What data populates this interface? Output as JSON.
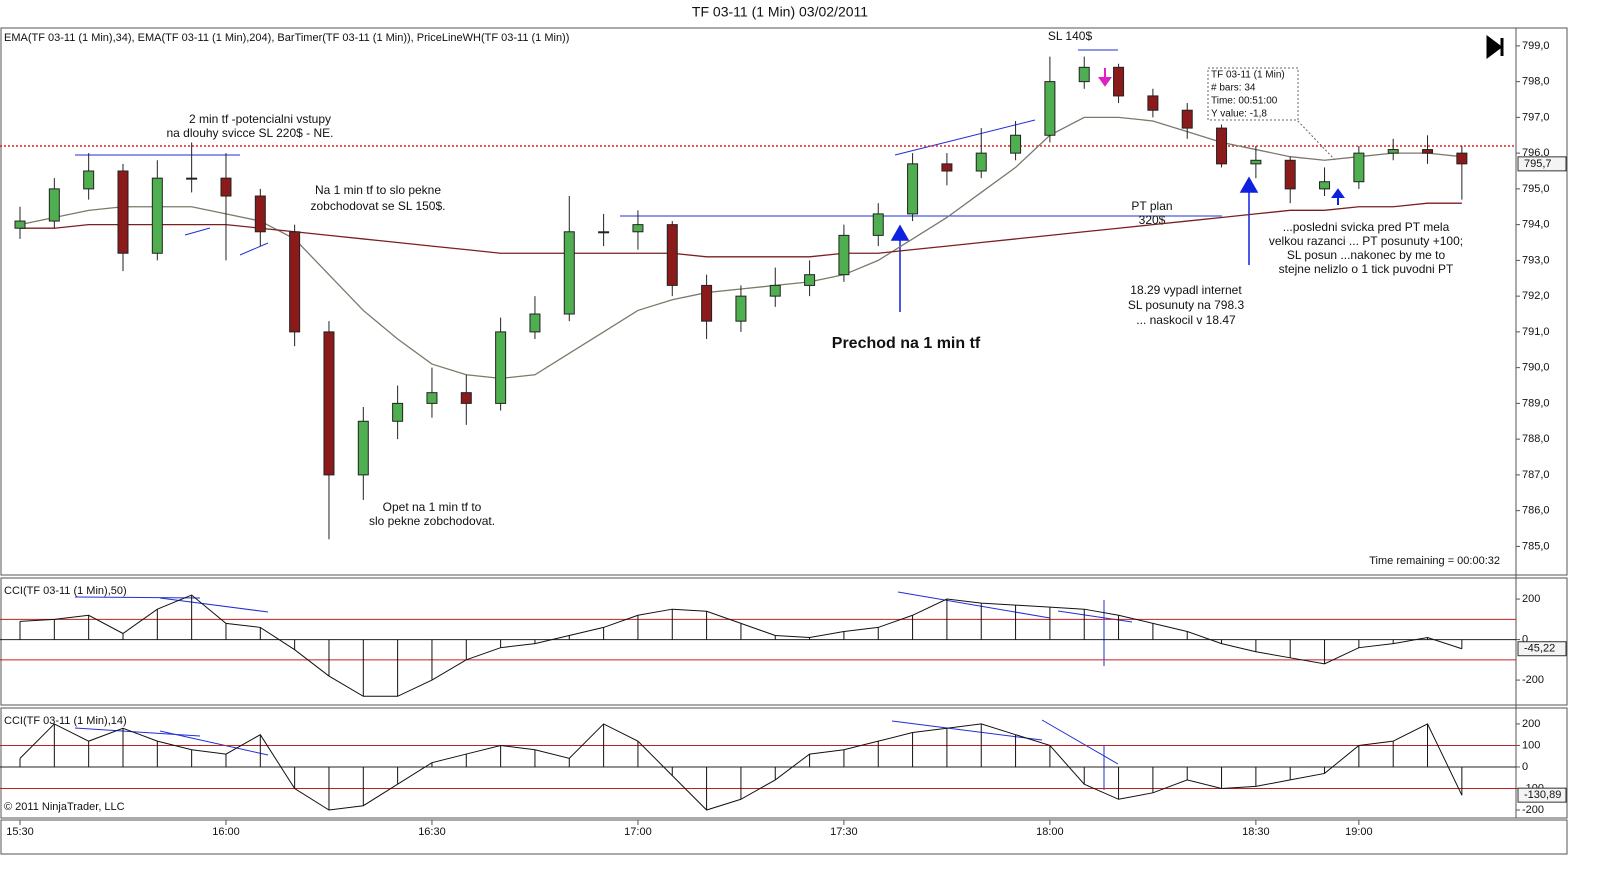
{
  "title": "TF 03-11 (1 Min)  03/02/2011",
  "indicators_label": "EMA(TF 03-11 (1 Min),34), EMA(TF 03-11 (1 Min),204), BarTimer(TF 03-11 (1 Min)), PriceLineWH(TF 03-11 (1 Min))",
  "annotations": [
    [
      "2 min tf -potencialni vstupy",
      "na dlouhy svicce SL 220$ - NE."
    ],
    [
      "Na 1 min tf to slo pekne",
      "zobchodovat se SL 150$."
    ],
    [
      "Opet na 1 min tf to",
      "slo pekne zobchodovat."
    ],
    [
      "Prechod na 1 min tf"
    ],
    [
      "SL 140$"
    ],
    [
      "PT plan",
      "320$"
    ],
    [
      "18.29 vypadl internet",
      "SL posunuty na 798.3",
      "... naskocil v 18.47"
    ],
    [
      "...posledni svicka pred PT mela",
      "velkou razanci ... PT posunuty +100;",
      "SL posun ...nakonec by me to",
      "stejne nelizlo o 1 tick puvodni PT"
    ]
  ],
  "tooltip": [
    "TF 03-11 (1 Min)",
    "# bars:   34",
    "Time:     00:51:00",
    "Y value: -1,8"
  ],
  "time_remaining": "Time remaining = 00:00:32",
  "copyright": "© 2011 NinjaTrader, LLC",
  "chart_data": [
    {
      "type": "candlestick",
      "categories": [
        "15:30",
        null,
        null,
        null,
        null,
        null,
        "16:00",
        null,
        null,
        null,
        null,
        null,
        "16:30",
        null,
        null,
        null,
        null,
        null,
        "17:00",
        null,
        null,
        null,
        null,
        null,
        "17:30",
        null,
        null,
        null,
        null,
        null,
        "18:00",
        null,
        null,
        null,
        null,
        null,
        "18:30",
        null,
        null,
        "19:00",
        null,
        null,
        null
      ],
      "open": [
        793.9,
        794.1,
        795.0,
        795.5,
        793.2,
        795.3,
        795.3,
        794.8,
        793.8,
        791.0,
        787.0,
        788.5,
        789.0,
        789.3,
        789.0,
        791.0,
        791.5,
        793.8,
        793.8,
        794.0,
        792.3,
        791.3,
        792.0,
        792.3,
        792.6,
        793.7,
        794.3,
        795.7,
        795.5,
        796.0,
        796.5,
        798.0,
        798.4,
        797.6,
        797.2,
        796.7,
        795.7,
        795.8,
        795.0,
        795.2,
        796.0,
        796.1,
        796.0
      ],
      "high": [
        794.5,
        795.3,
        796.0,
        795.7,
        795.8,
        796.3,
        796.0,
        795.0,
        794.0,
        791.3,
        788.9,
        789.5,
        790.0,
        789.8,
        791.4,
        792.0,
        794.8,
        794.3,
        794.4,
        794.1,
        792.6,
        792.3,
        792.8,
        793.0,
        794.0,
        794.6,
        796.0,
        796.0,
        796.7,
        796.9,
        798.7,
        798.7,
        798.5,
        797.8,
        797.4,
        796.8,
        796.2,
        795.9,
        795.6,
        796.2,
        796.4,
        796.5,
        796.2
      ],
      "low": [
        793.6,
        793.9,
        794.7,
        792.7,
        793.0,
        794.9,
        793.0,
        793.4,
        790.6,
        785.2,
        786.3,
        788.0,
        788.6,
        788.4,
        788.8,
        790.8,
        791.3,
        793.4,
        793.3,
        792.0,
        790.8,
        791.0,
        791.7,
        792.0,
        792.4,
        793.4,
        794.1,
        795.1,
        795.3,
        795.8,
        796.3,
        797.8,
        797.4,
        797.0,
        796.4,
        795.6,
        795.3,
        794.6,
        794.8,
        795.0,
        795.8,
        795.7,
        794.7
      ],
      "close": [
        794.1,
        795.0,
        795.5,
        793.2,
        795.3,
        795.3,
        794.8,
        793.8,
        791.0,
        787.0,
        788.5,
        789.0,
        789.3,
        789.0,
        791.0,
        791.5,
        793.8,
        793.8,
        794.0,
        792.3,
        791.3,
        792.0,
        792.3,
        792.6,
        793.7,
        794.3,
        795.7,
        795.5,
        796.0,
        796.5,
        798.0,
        798.4,
        797.6,
        797.2,
        796.7,
        795.7,
        795.8,
        795.0,
        795.2,
        796.0,
        796.1,
        796.0,
        795.7
      ],
      "up_color": "#4fae4f",
      "down_color": "#8b1a1a",
      "overlays": [
        {
          "color": "#7a7a6a",
          "values": [
            794.0,
            794.2,
            794.4,
            794.5,
            794.5,
            794.5,
            794.3,
            794.1,
            793.6,
            792.6,
            791.6,
            790.8,
            790.1,
            789.8,
            789.7,
            789.8,
            790.4,
            791.0,
            791.6,
            791.9,
            792.1,
            792.2,
            792.3,
            792.4,
            792.6,
            793.0,
            793.6,
            794.2,
            794.9,
            795.6,
            796.5,
            797.0,
            797.0,
            796.9,
            796.6,
            796.3,
            796.1,
            795.9,
            795.8,
            795.9,
            796.0,
            796.0,
            795.9
          ]
        },
        {
          "color": "#7a2020",
          "values": [
            793.9,
            793.9,
            794.0,
            794.0,
            794.0,
            794.0,
            794.0,
            793.9,
            793.8,
            793.7,
            793.6,
            793.5,
            793.4,
            793.3,
            793.2,
            793.2,
            793.2,
            793.2,
            793.2,
            793.2,
            793.1,
            793.1,
            793.1,
            793.1,
            793.2,
            793.2,
            793.3,
            793.4,
            793.5,
            793.6,
            793.7,
            793.8,
            793.9,
            794.0,
            794.1,
            794.2,
            794.3,
            794.4,
            794.4,
            794.5,
            794.5,
            794.6,
            794.6
          ]
        }
      ],
      "price_line": 796.2,
      "price_line_color": "#e02020",
      "marker": {
        "value": 795.7,
        "label": "795,7"
      },
      "ylim": [
        784.2,
        799.5
      ],
      "yticks": [
        {
          "value": 785,
          "label": "785,0"
        },
        {
          "value": 786,
          "label": "786,0"
        },
        {
          "value": 787,
          "label": "787,0"
        },
        {
          "value": 788,
          "label": "788,0"
        },
        {
          "value": 789,
          "label": "789,0"
        },
        {
          "value": 790,
          "label": "790,0"
        },
        {
          "value": 791,
          "label": "791,0"
        },
        {
          "value": 792,
          "label": "792,0"
        },
        {
          "value": 793,
          "label": "793,0"
        },
        {
          "value": 794,
          "label": "794,0"
        },
        {
          "value": 795,
          "label": "795,0"
        },
        {
          "value": 796,
          "label": "796,0"
        },
        {
          "value": 797,
          "label": "797,0"
        },
        {
          "value": 798,
          "label": "798,0"
        },
        {
          "value": 799,
          "label": "799,0"
        }
      ]
    },
    {
      "type": "bar",
      "title": "CCI(TF 03-11 (1 Min),50)",
      "color": "#111111",
      "values": [
        90,
        100,
        120,
        30,
        150,
        220,
        80,
        60,
        -50,
        -180,
        -280,
        -280,
        -200,
        -100,
        -40,
        -20,
        20,
        60,
        120,
        150,
        140,
        80,
        20,
        10,
        40,
        60,
        120,
        200,
        180,
        170,
        160,
        150,
        120,
        80,
        40,
        -20,
        -60,
        -90,
        -120,
        -40,
        -20,
        10,
        -45.22
      ],
      "marker": {
        "value": -45.22,
        "label": "-45,22"
      },
      "ref_lines": [
        100,
        -100
      ],
      "ref_color": "#c02020",
      "ylim": [
        -323,
        304
      ],
      "yticks": [
        200,
        0,
        -200
      ]
    },
    {
      "type": "bar",
      "title": "CCI(TF 03-11 (1 Min),14)",
      "color": "#111111",
      "values": [
        40,
        200,
        120,
        180,
        120,
        80,
        60,
        150,
        -100,
        -200,
        -180,
        -80,
        20,
        60,
        100,
        80,
        40,
        200,
        120,
        -40,
        -200,
        -150,
        -60,
        60,
        80,
        120,
        160,
        180,
        200,
        150,
        100,
        -80,
        -150,
        -120,
        -60,
        -100,
        -90,
        -60,
        -30,
        100,
        120,
        200,
        -130.89
      ],
      "marker": {
        "value": -130.89,
        "label": "-130,89"
      },
      "ref_lines": [
        100,
        -100
      ],
      "ref_color": "#c02020",
      "ylim": [
        -237,
        274
      ],
      "yticks": [
        200,
        100,
        0,
        -100,
        -200
      ]
    }
  ]
}
